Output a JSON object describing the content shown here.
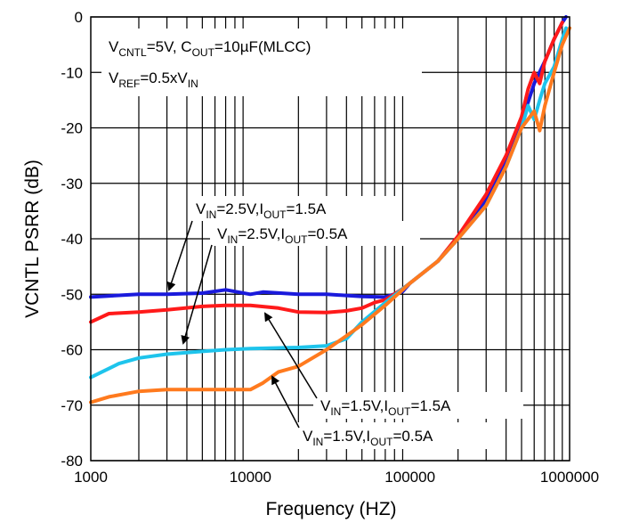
{
  "chart_data": {
    "type": "line",
    "xlabel": "Frequency (HZ)",
    "ylabel": "VCNTL PSRR (dB)",
    "xscale": "log",
    "xlim": [
      1000,
      1000000
    ],
    "ylim": [
      -80,
      0
    ],
    "grid": true,
    "x_ticks": [
      "1000",
      "10000",
      "100000",
      "1000000"
    ],
    "y_ticks": [
      "0",
      "-10",
      "-20",
      "-30",
      "-40",
      "-50",
      "-60",
      "-70",
      "-80"
    ],
    "conditions": {
      "line1": {
        "V": "V",
        "CNTL_sub": "CNTL",
        "eq5": "=5V, C",
        "OUT_sub": "OUT",
        "eq10": "=10µF(MLCC)"
      },
      "line2": {
        "V": "V",
        "REF_sub": "REF",
        "eq": "=0.5xV",
        "IN_sub": "IN"
      }
    },
    "series": [
      {
        "label": {
          "v": "V",
          "in": "IN",
          "mid": "=2.5V,I",
          "out": "OUT",
          "end": "=1.5A"
        },
        "color": "#1a1adc",
        "points": [
          [
            1000,
            -50.5
          ],
          [
            1500,
            -50.2
          ],
          [
            2000,
            -50
          ],
          [
            3000,
            -50
          ],
          [
            5000,
            -49.8
          ],
          [
            7000,
            -49.2
          ],
          [
            10000,
            -50
          ],
          [
            12000,
            -49.6
          ],
          [
            20000,
            -50
          ],
          [
            30000,
            -50
          ],
          [
            50000,
            -50.4
          ],
          [
            70000,
            -50.5
          ],
          [
            90000,
            -49.5
          ],
          [
            100000,
            -48
          ],
          [
            150000,
            -44
          ],
          [
            200000,
            -40
          ],
          [
            300000,
            -33
          ],
          [
            400000,
            -26
          ],
          [
            500000,
            -19
          ],
          [
            600000,
            -12
          ],
          [
            700000,
            -8
          ],
          [
            800000,
            -4
          ],
          [
            900000,
            -1
          ],
          [
            950000,
            0
          ]
        ]
      },
      {
        "label": {
          "v": "V",
          "in": "IN",
          "mid": "=2.5V,I",
          "out": "OUT",
          "end": "=0.5A"
        },
        "color": "#ff1a1a",
        "points": [
          [
            1000,
            -55
          ],
          [
            1300,
            -53.5
          ],
          [
            2000,
            -53.2
          ],
          [
            3000,
            -52.8
          ],
          [
            5000,
            -52.2
          ],
          [
            7000,
            -52
          ],
          [
            10000,
            -52
          ],
          [
            15000,
            -52.5
          ],
          [
            20000,
            -53.2
          ],
          [
            30000,
            -53.3
          ],
          [
            40000,
            -53
          ],
          [
            50000,
            -52.5
          ],
          [
            60000,
            -51.5
          ],
          [
            70000,
            -51
          ],
          [
            90000,
            -49
          ],
          [
            100000,
            -48
          ],
          [
            150000,
            -44
          ],
          [
            200000,
            -39.5
          ],
          [
            300000,
            -32
          ],
          [
            400000,
            -25
          ],
          [
            500000,
            -18
          ],
          [
            550000,
            -13
          ],
          [
            600000,
            -10
          ],
          [
            650000,
            -12
          ],
          [
            700000,
            -8
          ],
          [
            800000,
            -4
          ],
          [
            900000,
            -1
          ]
        ]
      },
      {
        "label": {
          "v": "V",
          "in": "IN",
          "mid": "=1.5V,I",
          "out": "OUT",
          "end": "=1.5A"
        },
        "color": "#1ec4ec",
        "points": [
          [
            1000,
            -65
          ],
          [
            1500,
            -62.5
          ],
          [
            2000,
            -61.5
          ],
          [
            3000,
            -60.8
          ],
          [
            5000,
            -60.3
          ],
          [
            7000,
            -60
          ],
          [
            10000,
            -59.8
          ],
          [
            20000,
            -59.6
          ],
          [
            30000,
            -59.3
          ],
          [
            40000,
            -58
          ],
          [
            50000,
            -55
          ],
          [
            70000,
            -51.5
          ],
          [
            100000,
            -48
          ],
          [
            150000,
            -44
          ],
          [
            200000,
            -40
          ],
          [
            300000,
            -34
          ],
          [
            400000,
            -27
          ],
          [
            500000,
            -20
          ],
          [
            550000,
            -16
          ],
          [
            600000,
            -18.5
          ],
          [
            650000,
            -15
          ],
          [
            700000,
            -12
          ],
          [
            800000,
            -9
          ],
          [
            900000,
            -4
          ],
          [
            950000,
            -2
          ]
        ]
      },
      {
        "label": {
          "v": "V",
          "in": "IN",
          "mid": "=1.5V,I",
          "out": "OUT",
          "end": "=0.5A"
        },
        "color": "#ff7a1e",
        "points": [
          [
            1000,
            -69.5
          ],
          [
            1300,
            -68.5
          ],
          [
            2000,
            -67.5
          ],
          [
            3000,
            -67.2
          ],
          [
            5000,
            -67.2
          ],
          [
            7000,
            -67.2
          ],
          [
            10000,
            -67.2
          ],
          [
            12000,
            -66
          ],
          [
            15000,
            -64
          ],
          [
            20000,
            -63
          ],
          [
            30000,
            -60
          ],
          [
            40000,
            -57.5
          ],
          [
            50000,
            -55.5
          ],
          [
            70000,
            -52
          ],
          [
            100000,
            -48
          ],
          [
            150000,
            -44
          ],
          [
            200000,
            -40
          ],
          [
            300000,
            -34
          ],
          [
            400000,
            -27
          ],
          [
            500000,
            -20
          ],
          [
            600000,
            -17
          ],
          [
            650000,
            -20.5
          ],
          [
            700000,
            -16
          ],
          [
            800000,
            -10
          ],
          [
            900000,
            -5
          ],
          [
            1000000,
            -2
          ]
        ]
      }
    ]
  }
}
